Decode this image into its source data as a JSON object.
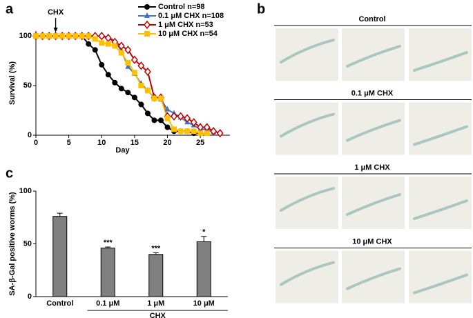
{
  "chart_data": [
    {
      "panel": "a",
      "type": "line",
      "annotation": "CHX",
      "annotation_x": 3,
      "xlabel": "Day",
      "ylabel": "Survival (%)",
      "x": [
        0,
        1,
        2,
        3,
        4,
        5,
        6,
        7,
        8,
        9,
        10,
        11,
        12,
        13,
        14,
        15,
        16,
        17,
        18,
        19,
        20,
        21,
        22,
        23,
        24,
        25,
        26,
        27,
        28
      ],
      "xlim": [
        0,
        29.5
      ],
      "xticks": [
        0,
        5,
        10,
        15,
        20,
        25
      ],
      "ylim": [
        0,
        105
      ],
      "yticks": [
        0,
        50,
        100
      ],
      "series": [
        {
          "name": "Control  n=98",
          "color": "#000000",
          "marker": "circle",
          "values": [
            100,
            100,
            100,
            100,
            100,
            100,
            100,
            100,
            92,
            86,
            71,
            61,
            53,
            47,
            43,
            38,
            31,
            22,
            15,
            15,
            8,
            4,
            4,
            4,
            2,
            2,
            null,
            null,
            null
          ]
        },
        {
          "name": "0.1 μM CHX n=108",
          "color": "#4472c4",
          "marker": "triangle",
          "values": [
            100,
            100,
            100,
            100,
            100,
            100,
            100,
            100,
            100,
            100,
            100,
            99,
            95,
            85,
            69,
            62,
            52,
            45,
            38,
            36,
            26,
            22,
            18,
            13,
            10,
            6,
            6,
            3,
            null
          ]
        },
        {
          "name": "1 μM CHX n=53",
          "color": "#c00000",
          "marker": "diamond",
          "values": [
            100,
            100,
            100,
            100,
            100,
            100,
            100,
            100,
            100,
            100,
            100,
            98,
            94,
            90,
            86,
            76,
            70,
            64,
            38,
            38,
            19,
            19,
            19,
            17,
            13,
            8,
            8,
            4,
            2
          ]
        },
        {
          "name": "10 μM CHX n=54",
          "color": "#ffc000",
          "marker": "square",
          "values": [
            100,
            100,
            100,
            100,
            100,
            100,
            100,
            100,
            100,
            97,
            93,
            92,
            90,
            83,
            73,
            63,
            50,
            45,
            37,
            37,
            17,
            6,
            4,
            4,
            4,
            2,
            2,
            null,
            null
          ]
        }
      ]
    },
    {
      "panel": "b",
      "type": "image-grid",
      "titles": [
        "Control",
        "0.1 μM CHX",
        "1 μM CHX",
        "10 μM CHX"
      ]
    },
    {
      "panel": "c",
      "type": "bar",
      "ylabel": "SA-β-Gal positive worms (%)",
      "categories": [
        "Control",
        "0.1 μM",
        "1 μM",
        "10 μM"
      ],
      "group_label": "CHX",
      "values": [
        76,
        46,
        40,
        52
      ],
      "errors": [
        3,
        1,
        1.5,
        5
      ],
      "significance": [
        null,
        "***",
        "***",
        "*"
      ],
      "color": "#808080",
      "ylim": [
        0,
        100
      ],
      "yticks": [
        0,
        50,
        100
      ]
    }
  ]
}
